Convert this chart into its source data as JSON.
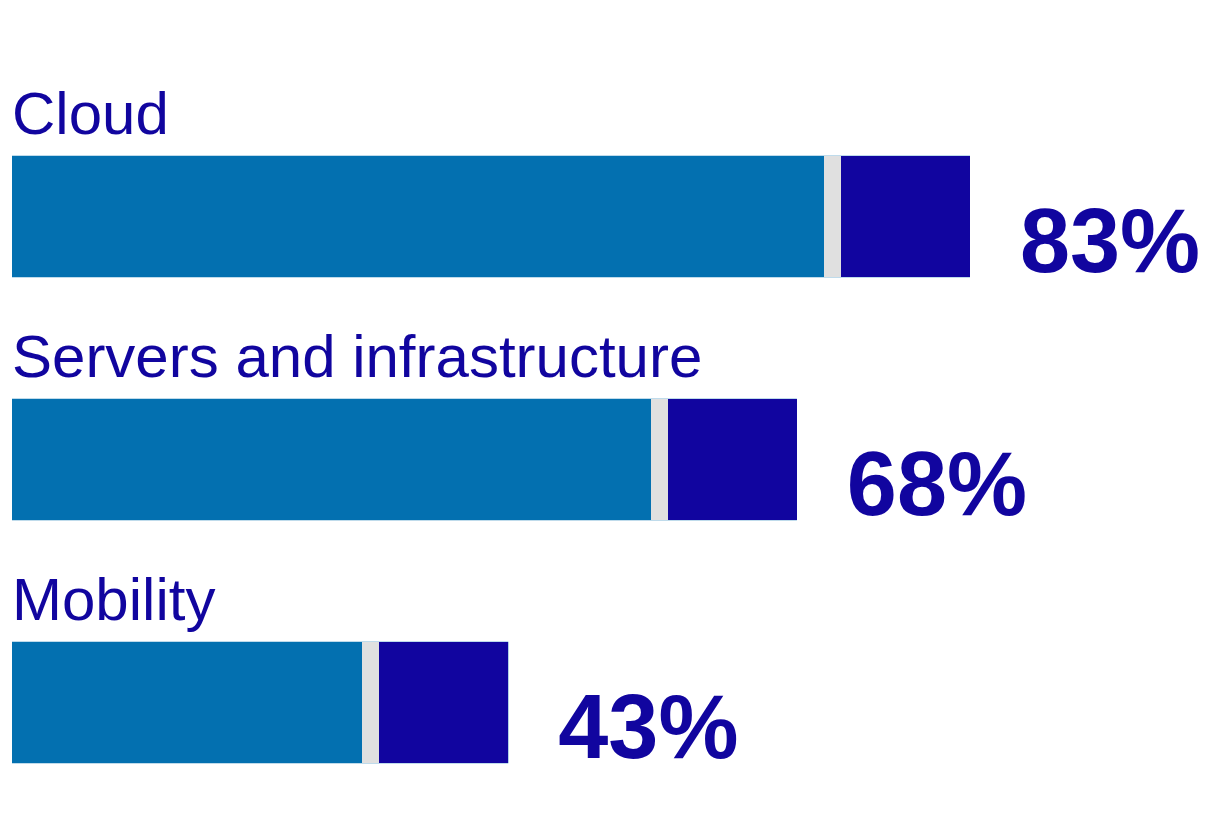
{
  "chart_data": {
    "type": "bar",
    "orientation": "horizontal",
    "categories": [
      "Cloud",
      "Servers and infrastructure",
      "Mobility"
    ],
    "series": [
      {
        "color": "#0370b0",
        "values": [
          83,
          68,
          43
        ],
        "value_labels": [
          "83%",
          "68%",
          "43%"
        ]
      }
    ],
    "legend": false
  }
}
